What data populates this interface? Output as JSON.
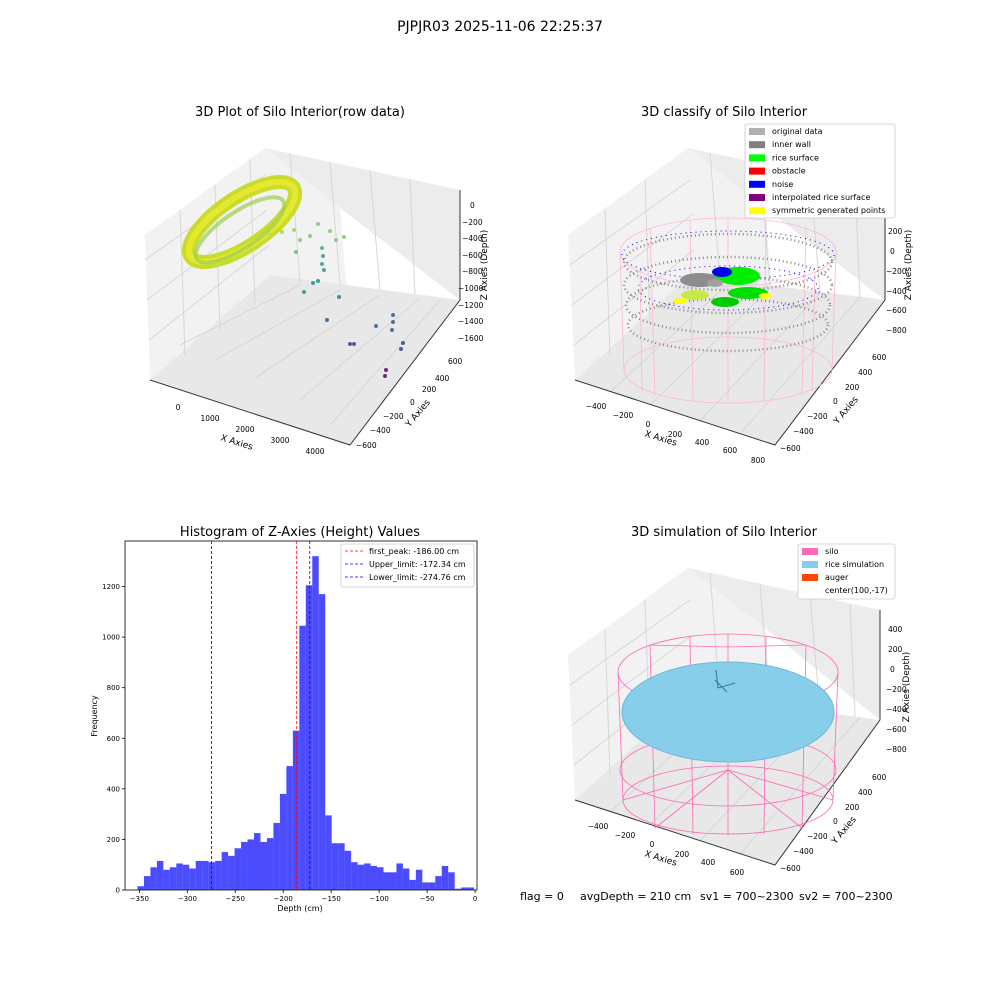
{
  "suptitle": "PJPJR03 2025-11-06 22:25:37",
  "footer": {
    "flag": "flag = 0",
    "avg_depth": "avgDepth = 210 cm",
    "sv1": "sv1 = 700~2300",
    "sv2": "sv2 = 700~2300"
  },
  "panels": {
    "raw": {
      "title": "3D Plot of Silo Interior(row data)",
      "xlabel": "X Axies",
      "ylabel": "Y Axies",
      "zlabel": "Z Axies (Depth)",
      "x_ticks": [
        "0",
        "1000",
        "2000",
        "3000",
        "4000"
      ],
      "y_ticks": [
        "600",
        "400",
        "200",
        "0",
        "−200",
        "−400",
        "−600"
      ],
      "z_ticks": [
        "0",
        "−200",
        "−400",
        "−600",
        "−800",
        "−1000",
        "−1200",
        "−1400",
        "−1600"
      ]
    },
    "classify": {
      "title": "3D classify of Silo Interior",
      "xlabel": "X Axies",
      "ylabel": "Y Axies",
      "zlabel": "Z Axies (Depth)",
      "x_ticks": [
        "−400",
        "−200",
        "0",
        "200",
        "400",
        "600",
        "800"
      ],
      "y_ticks": [
        "600",
        "400",
        "200",
        "0",
        "−200",
        "−400",
        "−600"
      ],
      "z_ticks": [
        "200",
        "0",
        "−200",
        "−400",
        "−600",
        "−800"
      ],
      "legend": [
        {
          "label": "original data",
          "color": "#b0b0b0"
        },
        {
          "label": "inner wall",
          "color": "#808080"
        },
        {
          "label": "rice surface",
          "color": "#00ff00"
        },
        {
          "label": "obstacle",
          "color": "#ff0000"
        },
        {
          "label": "noise",
          "color": "#0000ff"
        },
        {
          "label": "interpolated rice surface",
          "color": "#800080"
        },
        {
          "label": "symmetric generated points",
          "color": "#ffff00"
        }
      ]
    },
    "simulation": {
      "title": "3D simulation of Silo Interior",
      "xlabel": "X Axies",
      "ylabel": "Y Axies",
      "zlabel": "Z Axies (Depth)",
      "x_ticks": [
        "−400",
        "−200",
        "0",
        "200",
        "400",
        "600"
      ],
      "y_ticks": [
        "600",
        "400",
        "200",
        "0",
        "−200",
        "−400",
        "−600"
      ],
      "z_ticks": [
        "400",
        "200",
        "0",
        "−200",
        "−400",
        "−600",
        "−800"
      ],
      "legend": [
        {
          "label": "silo",
          "color": "#ff69b4"
        },
        {
          "label": "rice simulation",
          "color": "#87ceeb"
        },
        {
          "label": "auger",
          "color": "#ff4500"
        },
        {
          "label": "center(100,-17)",
          "color": ""
        }
      ]
    }
  },
  "chart_data": {
    "type": "bar",
    "title": "Histogram of Z-Axies (Height) Values",
    "xlabel": "Depth (cm)",
    "ylabel": "Frequency",
    "xlim": [
      -365,
      2
    ],
    "ylim": [
      0,
      1380
    ],
    "x_ticks": [
      -350,
      -300,
      -250,
      -200,
      -150,
      -100,
      -50,
      0
    ],
    "x_tick_labels": [
      "−350",
      "−300",
      "−250",
      "−200",
      "−150",
      "−100",
      "−50",
      "0"
    ],
    "y_ticks": [
      0,
      200,
      400,
      600,
      800,
      1000,
      1200
    ],
    "bar_color": "#0000ff",
    "bin_width": 6.75,
    "bin_start": -352,
    "values": [
      15,
      55,
      90,
      115,
      80,
      90,
      105,
      100,
      85,
      115,
      115,
      110,
      115,
      150,
      135,
      165,
      190,
      200,
      225,
      190,
      205,
      265,
      380,
      490,
      630,
      1045,
      1205,
      1320,
      1170,
      295,
      185,
      185,
      155,
      110,
      100,
      105,
      95,
      90,
      70,
      70,
      105,
      85,
      40,
      80,
      30,
      30,
      55,
      95,
      70,
      5,
      10,
      10
    ],
    "reference_lines": [
      {
        "label": "first_peak: -186.00 cm",
        "x": -186.0,
        "color": "#ff0000"
      },
      {
        "label": "Upper_limit: -172.34 cm",
        "x": -172.34,
        "color": "#0000ff"
      },
      {
        "label": "Lower_limit: -274.76 cm",
        "x": -274.76,
        "color": "#0000ff"
      }
    ],
    "legend_position": "top-right"
  }
}
